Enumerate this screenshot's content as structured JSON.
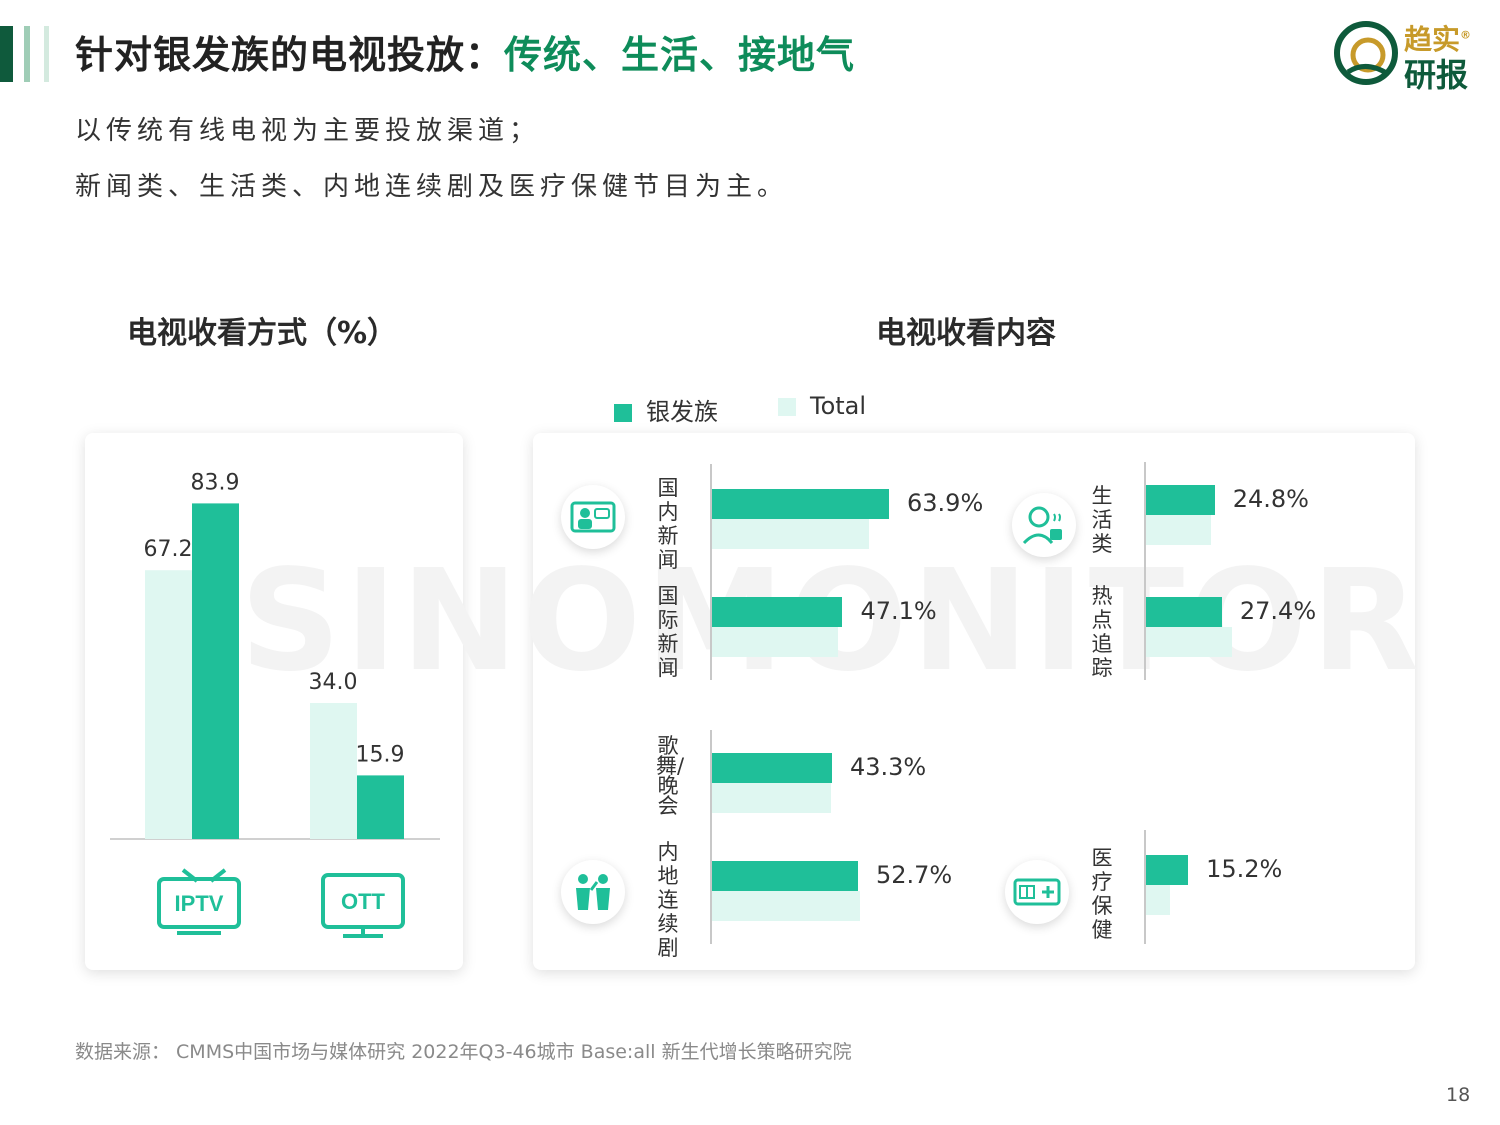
{
  "header": {
    "title_main": "针对银发族的电视投放：",
    "title_highlight": "传统、生活、接地气",
    "logo_line1": "趋实",
    "logo_line2": "研报",
    "logo_mark": "®"
  },
  "subtitle": {
    "line1": "以传统有线电视为主要投放渠道；",
    "line2": "新闻类、生活类、内地连续剧及医疗保健节目为主。"
  },
  "watermark": "SINOMONITOR",
  "colors": {
    "silver": "#1fbf99",
    "total": "#dff7f1",
    "dark_green": "#0e5a3b",
    "accent_green": "#0e8c5a"
  },
  "chart_data": [
    {
      "type": "bar",
      "title": "电视收看方式（%）",
      "categories": [
        "IPTV",
        "OTT"
      ],
      "series": [
        {
          "name": "Total",
          "values": [
            67.2,
            34.0
          ]
        },
        {
          "name": "银发族",
          "values": [
            83.9,
            15.9
          ]
        }
      ],
      "value_labels": [
        "67.2",
        "83.9",
        "34.0",
        "15.9"
      ],
      "ylim": [
        0,
        100
      ]
    },
    {
      "type": "bar",
      "orientation": "horizontal",
      "title": "电视收看内容",
      "legend": [
        "银发族",
        "Total"
      ],
      "legend_placement": "top",
      "categories": [
        "国内新闻",
        "国际新闻",
        "歌舞/晚会",
        "内地连续剧",
        "生活类",
        "热点追踪",
        "医疗保健"
      ],
      "series": [
        {
          "name": "银发族",
          "values": [
            63.9,
            47.1,
            43.3,
            52.7,
            24.8,
            27.4,
            15.2
          ]
        },
        {
          "name": "Total",
          "values": [
            56.5,
            45.5,
            42.8,
            53.5,
            23.5,
            31.2,
            8.5
          ]
        }
      ],
      "value_labels": [
        "63.9%",
        "47.1%",
        "43.3%",
        "52.7%",
        "24.8%",
        "27.4%",
        "15.2%"
      ],
      "xlim": [
        0,
        100
      ]
    }
  ],
  "icons": {
    "iptv": "tv-icon",
    "ott": "monitor-icon",
    "news_cn": "news-anchor-icon",
    "variety": "performers-icon",
    "life": "person-coffee-icon",
    "health": "health-card-icon"
  },
  "footer": {
    "source": "数据来源： CMMS中国市场与媒体研究 2022年Q3-46城市 Base:all  新生代增长策略研究院",
    "page_number": "18"
  }
}
